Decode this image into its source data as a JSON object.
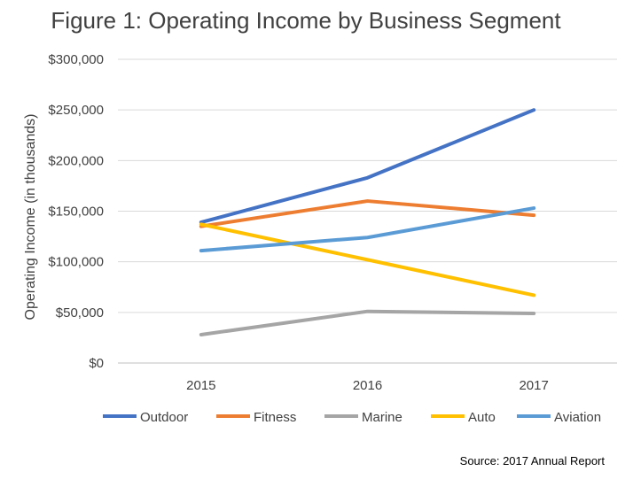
{
  "chart_data": {
    "type": "line",
    "title": "Figure 1: Operating Income by Business Segment",
    "ylabel": "Operating Income (in thousands)",
    "xlabel": "",
    "categories": [
      "2015",
      "2016",
      "2017"
    ],
    "ylim": [
      0,
      300000
    ],
    "yticks": [
      0,
      50000,
      100000,
      150000,
      200000,
      250000,
      300000
    ],
    "ytick_labels": [
      "$0",
      "$50,000",
      "$100,000",
      "$150,000",
      "$200,000",
      "$250,000",
      "$300,000"
    ],
    "grid": true,
    "legend_position": "bottom",
    "series": [
      {
        "name": "Outdoor",
        "color": "#4472C4",
        "values": [
          139000,
          183000,
          250000
        ]
      },
      {
        "name": "Fitness",
        "color": "#ED7D31",
        "values": [
          135000,
          160000,
          146000
        ]
      },
      {
        "name": "Marine",
        "color": "#A5A5A5",
        "values": [
          28000,
          51000,
          49000
        ]
      },
      {
        "name": "Auto",
        "color": "#FFC000",
        "values": [
          137000,
          102000,
          67000
        ]
      },
      {
        "name": "Aviation",
        "color": "#5B9BD5",
        "values": [
          111000,
          124000,
          153000
        ]
      }
    ],
    "source": "Source: 2017 Annual Report"
  }
}
